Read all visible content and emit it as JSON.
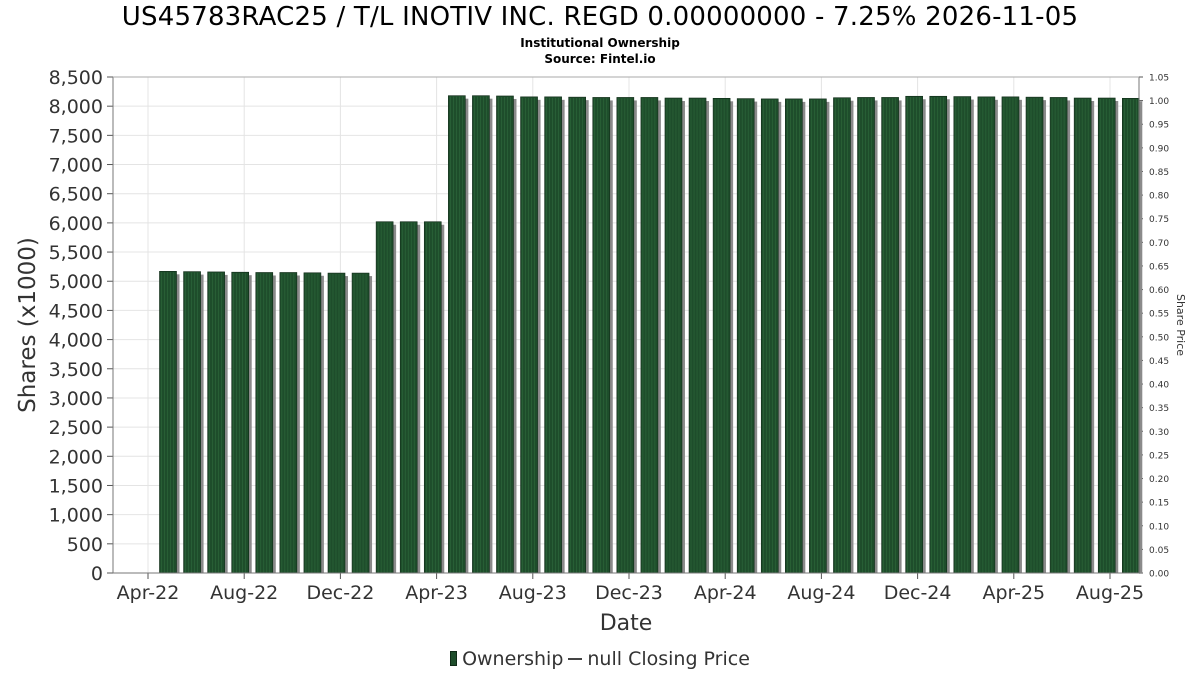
{
  "title": "US45783RAC25 / T/L INOTIV INC. REGD 0.00000000 - 7.25% 2026-11-05",
  "subtitle": "Institutional Ownership",
  "source": "Source: Fintel.io",
  "legend": {
    "ownership": "Ownership",
    "price": "null Closing Price"
  },
  "colors": {
    "bar": "#1e4d2b",
    "bar_shadow": "#8a8a8a",
    "grid": "#e4e4e4"
  },
  "chart_data": {
    "type": "bar",
    "title": "US45783RAC25 / T/L INOTIV INC. REGD 0.00000000 - 7.25% 2026-11-05",
    "xlabel": "Date",
    "ylabel": "Shares (x1000)",
    "y2label": "Share Price",
    "ylim": [
      0,
      8500
    ],
    "y2lim": [
      0,
      1.05
    ],
    "yticks": [
      "0",
      "500",
      "1,000",
      "1,500",
      "2,000",
      "2,500",
      "3,000",
      "3,500",
      "4,000",
      "4,500",
      "5,000",
      "5,500",
      "6,000",
      "6,500",
      "7,000",
      "7,500",
      "8,000",
      "8,500"
    ],
    "y2ticks": [
      "0.00",
      "0.05",
      "0.10",
      "0.15",
      "0.20",
      "0.25",
      "0.30",
      "0.35",
      "0.40",
      "0.45",
      "0.50",
      "0.55",
      "0.60",
      "0.65",
      "0.70",
      "0.75",
      "0.80",
      "0.85",
      "0.90",
      "0.95",
      "1.00",
      "1.05"
    ],
    "xticks": [
      "Apr-22",
      "Aug-22",
      "Dec-22",
      "Apr-23",
      "Aug-23",
      "Dec-23",
      "Apr-24",
      "Aug-24",
      "Dec-24",
      "Apr-25",
      "Aug-25"
    ],
    "grid": true,
    "legend_position": "bottom-center",
    "series": [
      {
        "name": "Ownership",
        "values": [
          5170,
          5165,
          5160,
          5155,
          5150,
          5150,
          5145,
          5140,
          5140,
          6020,
          6020,
          6020,
          8180,
          8180,
          8175,
          8160,
          8160,
          8155,
          8150,
          8150,
          8150,
          8140,
          8140,
          8135,
          8130,
          8125,
          8125,
          8125,
          8145,
          8150,
          8150,
          8170,
          8170,
          8165,
          8160,
          8160,
          8155,
          8150,
          8140,
          8140,
          8135
        ]
      },
      {
        "name": "null Closing Price",
        "values": []
      }
    ]
  }
}
